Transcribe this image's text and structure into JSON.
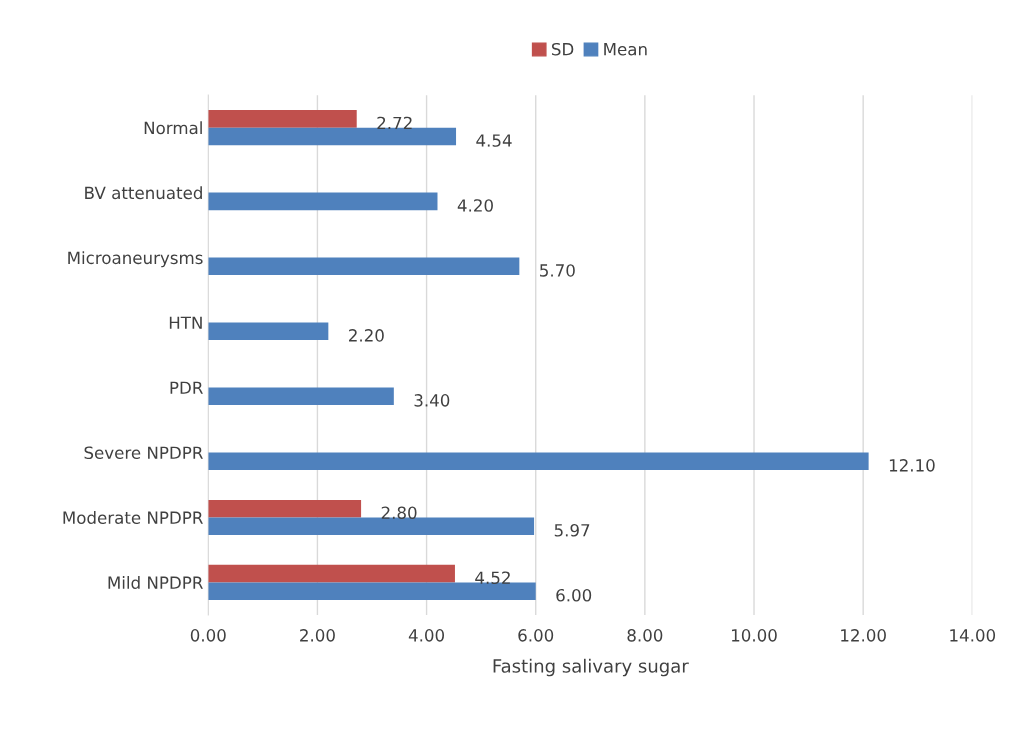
{
  "chart_data": {
    "type": "bar",
    "orientation": "horizontal",
    "xlabel": "Fasting salivary sugar",
    "categories": [
      "Normal",
      "BV attenuated",
      "Microaneurysms",
      "HTN",
      "PDR",
      "Severe NPDPR",
      "Moderate NPDPR",
      "Mild NPDPR"
    ],
    "series": [
      {
        "name": "SD",
        "color": "#c0504d",
        "values": [
          2.72,
          null,
          null,
          null,
          null,
          null,
          2.8,
          4.52
        ],
        "value_labels": [
          "2.72",
          null,
          null,
          null,
          null,
          null,
          "2.80",
          "4.52"
        ]
      },
      {
        "name": "Mean",
        "color": "#4f81bd",
        "values": [
          4.54,
          4.2,
          5.7,
          2.2,
          3.4,
          12.1,
          5.97,
          6.0
        ],
        "value_labels": [
          "4.54",
          "4.20",
          "5.70",
          "2.20",
          "3.40",
          "12.10",
          "5.97",
          "6.00"
        ]
      }
    ],
    "xlim": [
      0,
      14
    ],
    "xticks": [
      {
        "value": 0,
        "label": "0.00"
      },
      {
        "value": 2,
        "label": "2.00"
      },
      {
        "value": 4,
        "label": "4.00"
      },
      {
        "value": 6,
        "label": "6.00"
      },
      {
        "value": 8,
        "label": "8.00"
      },
      {
        "value": 10,
        "label": "10.00"
      },
      {
        "value": 12,
        "label": "12.00"
      },
      {
        "value": 14,
        "label": "14.00"
      }
    ],
    "grid": "x",
    "legend": "top"
  }
}
